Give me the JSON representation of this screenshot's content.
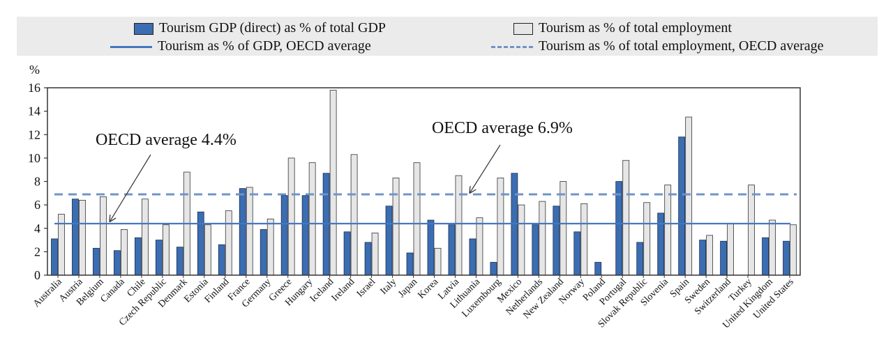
{
  "legend": {
    "gdp_label": "Tourism GDP (direct) as % of total GDP",
    "emp_label": "Tourism as % of total employment",
    "gdp_avg_label": "Tourism as % of GDP, OECD average",
    "emp_avg_label": "Tourism as % of total employment, OECD average"
  },
  "colors": {
    "gdp_bar": "#3b6db2",
    "emp_bar": "#e6e6e6",
    "gdp_line": "#4477c0",
    "emp_line": "#6f94c8",
    "axis": "#333333"
  },
  "chart_data": {
    "type": "bar",
    "ylabel": "%",
    "ylim": [
      0,
      16
    ],
    "yticks": [
      0,
      2,
      4,
      6,
      8,
      10,
      12,
      14,
      16
    ],
    "categories": [
      "Australia",
      "Austria",
      "Belgium",
      "Canada",
      "Chile",
      "Czech Republic",
      "Denmark",
      "Estonia",
      "Finland",
      "France",
      "Germany",
      "Greece",
      "Hungary",
      "Iceland",
      "Ireland",
      "Israel",
      "Italy",
      "Japan",
      "Korea",
      "Latvia",
      "Lithuania",
      "Luxembourg",
      "Mexico",
      "Netherlands",
      "New Zealand",
      "Norway",
      "Poland",
      "Portugal",
      "Slovak Republic",
      "Slovenia",
      "Spain",
      "Sweden",
      "Switzerland",
      "Turkey",
      "United Kingdom",
      "United States"
    ],
    "series": [
      {
        "name": "Tourism GDP (direct) as % of total GDP",
        "values": [
          3.1,
          6.5,
          2.3,
          2.1,
          3.2,
          3.0,
          2.4,
          5.4,
          2.6,
          7.4,
          3.9,
          6.8,
          6.8,
          8.7,
          3.7,
          2.8,
          5.9,
          1.9,
          4.7,
          4.3,
          3.1,
          1.1,
          8.7,
          4.3,
          5.9,
          3.7,
          1.1,
          8.0,
          2.8,
          5.3,
          11.8,
          3.0,
          2.9,
          null,
          3.2,
          2.9
        ]
      },
      {
        "name": "Tourism as % of total employment",
        "values": [
          5.2,
          6.4,
          6.7,
          3.9,
          6.5,
          4.3,
          8.8,
          4.3,
          5.5,
          7.5,
          4.8,
          10.0,
          9.6,
          15.8,
          10.3,
          3.6,
          8.3,
          9.6,
          2.3,
          8.5,
          4.9,
          8.3,
          6.0,
          6.3,
          8.0,
          6.1,
          null,
          9.8,
          6.2,
          7.7,
          13.5,
          3.4,
          4.4,
          7.7,
          4.7,
          4.3
        ]
      }
    ],
    "reference_lines": [
      {
        "name": "Tourism as % of GDP, OECD average",
        "value": 4.4,
        "style": "solid"
      },
      {
        "name": "Tourism as % of total employment, OECD average",
        "value": 6.9,
        "style": "dashed"
      }
    ],
    "annotations": [
      {
        "text": "OECD average 4.4%",
        "target": 4.4
      },
      {
        "text": "OECD average 6.9%",
        "target": 6.9
      }
    ],
    "grid": false,
    "legend_position": "top"
  }
}
